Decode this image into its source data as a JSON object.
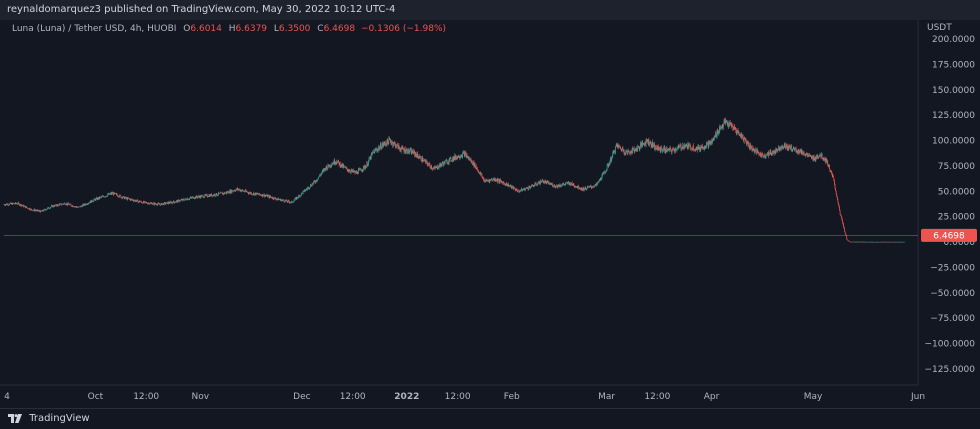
{
  "header": {
    "published": "reynaldomarquez3 published on TradingView.com, May 30, 2022 10:12 UTC-4"
  },
  "legend": {
    "symbol": "Luna (Luna) / Tether USD, 4h, HUOBI",
    "open_label": "O",
    "open": "6.6014",
    "high_label": "H",
    "high": "6.6379",
    "low_label": "L",
    "low": "6.3500",
    "close_label": "C",
    "close": "6.4698",
    "change": "−0.1306 (−1.98%)"
  },
  "footer": {
    "brand": "TradingView"
  },
  "colors": {
    "background": "#131722",
    "up": "#26a69a",
    "down": "#ef5350",
    "last_price_line": "#ef5350"
  },
  "chart_data": {
    "type": "candlestick",
    "symbol": "Luna (Luna) / Tether USD",
    "interval": "4h",
    "exchange": "HUOBI",
    "currency_label": "USDT",
    "y_ticks": [
      200,
      175,
      150,
      125,
      100,
      75,
      50,
      25,
      0,
      -25,
      -50,
      -75,
      -100,
      -125
    ],
    "y_tick_labels": [
      "200.0000",
      "175.0000",
      "150.0000",
      "125.0000",
      "100.0000",
      "75.0000",
      "50.0000",
      "25.0000",
      "0.0000",
      "−25.0000",
      "−50.0000",
      "−75.0000",
      "−100.0000",
      "−125.0000"
    ],
    "ylim": [
      -135,
      205
    ],
    "x_range": [
      "2021-09-04",
      "2022-06-01"
    ],
    "x_ticks": [
      {
        "date": "2021-09-04",
        "label": "4"
      },
      {
        "date": "2021-10-01",
        "label": "Oct"
      },
      {
        "date": "2021-10-16",
        "label": "12:00"
      },
      {
        "date": "2021-11-01",
        "label": "Nov"
      },
      {
        "date": "2021-12-01",
        "label": "Dec"
      },
      {
        "date": "2021-12-16",
        "label": "12:00"
      },
      {
        "date": "2022-01-01",
        "label": "2022"
      },
      {
        "date": "2022-01-16",
        "label": "12:00"
      },
      {
        "date": "2022-02-01",
        "label": "Feb"
      },
      {
        "date": "2022-03-01",
        "label": "Mar"
      },
      {
        "date": "2022-03-16",
        "label": "12:00"
      },
      {
        "date": "2022-04-01",
        "label": "Apr"
      },
      {
        "date": "2022-05-01",
        "label": "May"
      },
      {
        "date": "2022-06-01",
        "label": "Jun"
      }
    ],
    "last_price": 6.4698,
    "last_price_label": "6.4698",
    "price_path": [
      [
        "2021-09-04",
        37
      ],
      [
        "2021-09-08",
        38
      ],
      [
        "2021-09-12",
        32
      ],
      [
        "2021-09-15",
        30
      ],
      [
        "2021-09-18",
        35
      ],
      [
        "2021-09-22",
        38
      ],
      [
        "2021-09-26",
        34
      ],
      [
        "2021-10-01",
        42
      ],
      [
        "2021-10-06",
        48
      ],
      [
        "2021-10-10",
        43
      ],
      [
        "2021-10-15",
        39
      ],
      [
        "2021-10-20",
        37
      ],
      [
        "2021-10-25",
        40
      ],
      [
        "2021-10-30",
        44
      ],
      [
        "2021-11-04",
        46
      ],
      [
        "2021-11-08",
        48
      ],
      [
        "2021-11-12",
        52
      ],
      [
        "2021-11-16",
        48
      ],
      [
        "2021-11-20",
        46
      ],
      [
        "2021-11-24",
        42
      ],
      [
        "2021-11-28",
        39
      ],
      [
        "2021-12-01",
        48
      ],
      [
        "2021-12-05",
        60
      ],
      [
        "2021-12-08",
        73
      ],
      [
        "2021-12-11",
        80
      ],
      [
        "2021-12-14",
        72
      ],
      [
        "2021-12-17",
        68
      ],
      [
        "2021-12-20",
        75
      ],
      [
        "2021-12-22",
        88
      ],
      [
        "2021-12-25",
        96
      ],
      [
        "2021-12-27",
        100
      ],
      [
        "2021-12-30",
        92
      ],
      [
        "2022-01-03",
        88
      ],
      [
        "2022-01-06",
        80
      ],
      [
        "2022-01-09",
        72
      ],
      [
        "2022-01-12",
        78
      ],
      [
        "2022-01-15",
        83
      ],
      [
        "2022-01-18",
        87
      ],
      [
        "2022-01-21",
        76
      ],
      [
        "2022-01-24",
        60
      ],
      [
        "2022-01-27",
        62
      ],
      [
        "2022-01-31",
        56
      ],
      [
        "2022-02-03",
        50
      ],
      [
        "2022-02-07",
        55
      ],
      [
        "2022-02-10",
        60
      ],
      [
        "2022-02-14",
        55
      ],
      [
        "2022-02-18",
        58
      ],
      [
        "2022-02-22",
        52
      ],
      [
        "2022-02-26",
        56
      ],
      [
        "2022-03-01",
        72
      ],
      [
        "2022-03-04",
        95
      ],
      [
        "2022-03-07",
        88
      ],
      [
        "2022-03-10",
        92
      ],
      [
        "2022-03-13",
        100
      ],
      [
        "2022-03-16",
        92
      ],
      [
        "2022-03-20",
        90
      ],
      [
        "2022-03-24",
        95
      ],
      [
        "2022-03-28",
        92
      ],
      [
        "2022-04-01",
        98
      ],
      [
        "2022-04-03",
        110
      ],
      [
        "2022-04-05",
        118
      ],
      [
        "2022-04-07",
        114
      ],
      [
        "2022-04-10",
        104
      ],
      [
        "2022-04-13",
        92
      ],
      [
        "2022-04-16",
        85
      ],
      [
        "2022-04-19",
        88
      ],
      [
        "2022-04-22",
        95
      ],
      [
        "2022-04-25",
        92
      ],
      [
        "2022-04-28",
        88
      ],
      [
        "2022-05-01",
        82
      ],
      [
        "2022-05-03",
        86
      ],
      [
        "2022-05-05",
        80
      ],
      [
        "2022-05-07",
        62
      ],
      [
        "2022-05-08",
        45
      ],
      [
        "2022-05-09",
        28
      ],
      [
        "2022-05-10",
        15
      ],
      [
        "2022-05-11",
        2
      ],
      [
        "2022-05-12",
        0.1
      ],
      [
        "2022-05-20",
        0.0002
      ],
      [
        "2022-05-28",
        0.0002
      ]
    ]
  }
}
